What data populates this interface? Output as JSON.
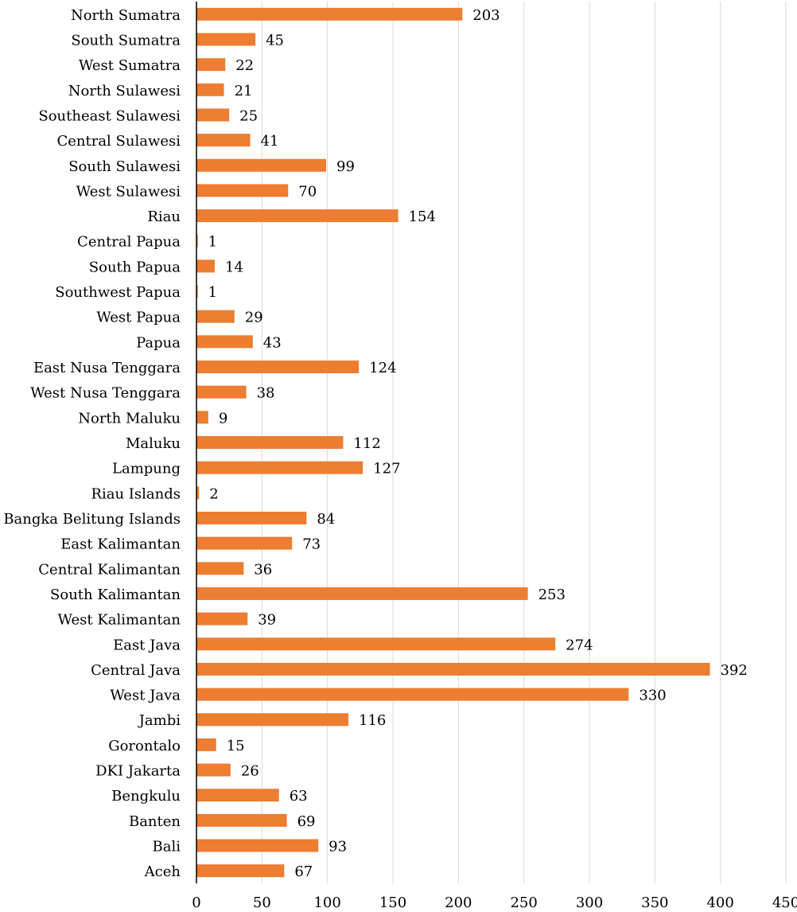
{
  "chart_data": {
    "type": "bar",
    "orientation": "horizontal",
    "title": "",
    "xlabel": "",
    "ylabel": "",
    "xlim": [
      0,
      450
    ],
    "xticks": [
      0,
      50,
      100,
      150,
      200,
      250,
      300,
      350,
      400,
      450
    ],
    "grid": true,
    "legend": "none",
    "bar_color": "#ED7D31",
    "categories": [
      "North Sumatra",
      "South Sumatra",
      "West Sumatra",
      "North Sulawesi",
      "Southeast Sulawesi",
      "Central Sulawesi",
      "South Sulawesi",
      "West Sulawesi",
      "Riau",
      "Central Papua",
      "South Papua",
      "Southwest Papua",
      "West Papua",
      "Papua",
      "East Nusa Tenggara",
      "West Nusa Tenggara",
      "North Maluku",
      "Maluku",
      "Lampung",
      "Riau Islands",
      "Bangka Belitung Islands",
      "East Kalimantan",
      "Central Kalimantan",
      "South Kalimantan",
      "West Kalimantan",
      "East Java",
      "Central Java",
      "West Java",
      "Jambi",
      "Gorontalo",
      "DKI Jakarta",
      "Bengkulu",
      "Banten",
      "Bali",
      "Aceh"
    ],
    "values": [
      203,
      45,
      22,
      21,
      25,
      41,
      99,
      70,
      154,
      1,
      14,
      1,
      29,
      43,
      124,
      38,
      9,
      112,
      127,
      2,
      84,
      73,
      36,
      253,
      39,
      274,
      392,
      330,
      116,
      15,
      26,
      63,
      69,
      93,
      67
    ]
  }
}
